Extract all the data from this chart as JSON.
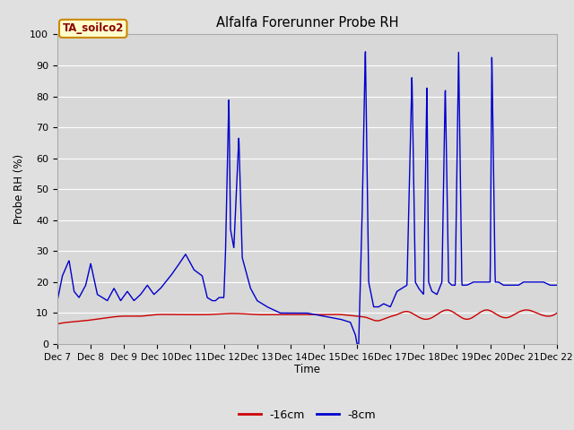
{
  "title": "Alfalfa Forerunner Probe RH",
  "ylabel": "Probe RH (%)",
  "xlabel": "Time",
  "ylim": [
    0,
    100
  ],
  "fig_bg_color": "#e0e0e0",
  "plot_bg_color": "#d8d8d8",
  "legend_label": "TA_soilco2",
  "x_tick_labels": [
    "Dec 7",
    "Dec 8",
    "Dec 9",
    "Dec 10",
    "Dec 11",
    "Dec 12",
    "Dec 13",
    "Dec 14",
    "Dec 15",
    "Dec 16",
    "Dec 17",
    "Dec 18",
    "Dec 19",
    "Dec 20",
    "Dec 21",
    "Dec 22"
  ],
  "red_color": "#cc0000",
  "blue_color": "#0000cc",
  "grid_color": "#ffffff",
  "spine_color": "#aaaaaa",
  "num_days": 15,
  "red_series": {
    "x": [
      0,
      0.3,
      0.8,
      1.5,
      2.0,
      2.5,
      3.0,
      3.5,
      4.0,
      4.5,
      5.0,
      5.5,
      6.0,
      6.5,
      7.0,
      7.5,
      8.0,
      8.5,
      9.0,
      9.3,
      9.6,
      9.9,
      10.2,
      10.5,
      10.8,
      11.1,
      11.4,
      11.7,
      12.0,
      12.3,
      12.6,
      12.9,
      13.2,
      13.5,
      13.8,
      14.1,
      14.4,
      14.7,
      15.0
    ],
    "y": [
      6.5,
      7.0,
      7.5,
      8.5,
      9.0,
      9.0,
      9.5,
      9.5,
      9.5,
      9.5,
      9.8,
      9.8,
      9.5,
      9.5,
      9.5,
      9.5,
      9.5,
      9.5,
      9.0,
      8.5,
      7.5,
      8.5,
      9.5,
      10.5,
      9.0,
      8.0,
      9.5,
      11.0,
      9.5,
      8.0,
      9.5,
      11.0,
      9.5,
      8.5,
      10.0,
      11.0,
      10.0,
      9.0,
      10.0
    ]
  },
  "blue_series": {
    "x": [
      0,
      0.15,
      0.35,
      0.5,
      0.65,
      0.85,
      1.0,
      1.2,
      1.5,
      1.7,
      1.9,
      2.1,
      2.3,
      2.5,
      2.7,
      2.9,
      3.1,
      3.4,
      3.6,
      3.85,
      4.1,
      4.35,
      4.5,
      4.65,
      4.75,
      4.85,
      5.0,
      5.05,
      5.15,
      5.2,
      5.3,
      5.45,
      5.55,
      5.65,
      5.8,
      6.0,
      6.3,
      6.7,
      7.0,
      7.5,
      8.0,
      8.5,
      8.8,
      8.95,
      9.0,
      9.05,
      9.15,
      9.25,
      9.35,
      9.5,
      9.65,
      9.8,
      10.0,
      10.2,
      10.5,
      10.65,
      10.75,
      10.85,
      11.0,
      11.1,
      11.15,
      11.25,
      11.4,
      11.55,
      11.65,
      11.75,
      11.85,
      11.95,
      12.05,
      12.15,
      12.3,
      12.5,
      12.7,
      12.9,
      13.0,
      13.05,
      13.15,
      13.25,
      13.4,
      13.55,
      13.7,
      13.85,
      14.0,
      14.2,
      14.4,
      14.6,
      14.8,
      15.0
    ],
    "y": [
      14,
      22,
      27,
      17,
      15,
      19,
      26,
      16,
      14,
      18,
      14,
      17,
      14,
      16,
      19,
      16,
      18,
      22,
      25,
      29,
      24,
      22,
      15,
      14,
      14,
      15,
      15,
      30,
      80,
      37,
      31,
      67,
      28,
      24,
      18,
      14,
      12,
      10,
      10,
      10,
      9,
      8,
      7,
      3,
      0,
      0,
      40,
      96,
      20,
      12,
      12,
      13,
      12,
      17,
      19,
      87,
      20,
      18,
      16,
      84,
      20,
      17,
      16,
      20,
      84,
      20,
      19,
      19,
      95,
      19,
      19,
      20,
      20,
      20,
      20,
      94,
      20,
      20,
      19,
      19,
      19,
      19,
      20,
      20,
      20,
      20,
      19,
      19
    ]
  }
}
